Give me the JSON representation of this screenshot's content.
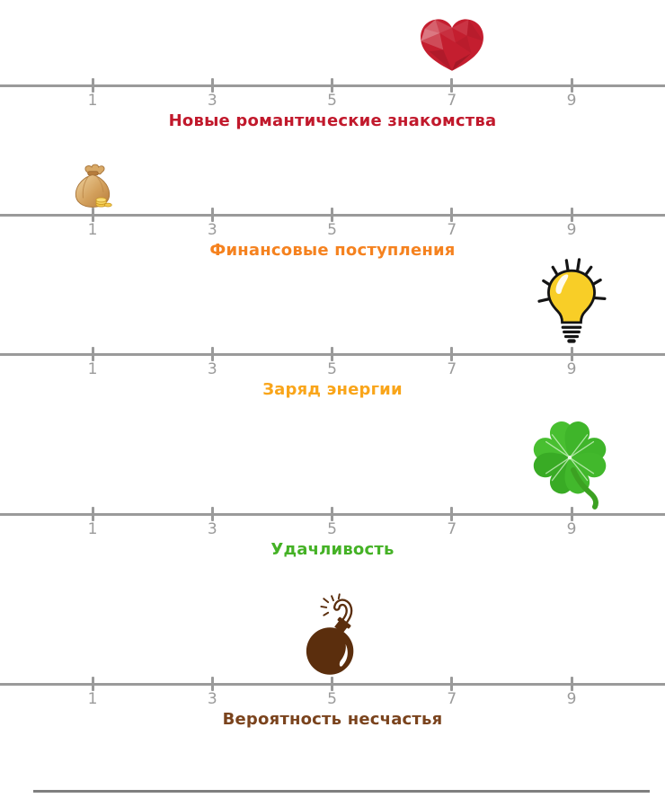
{
  "axis": {
    "tick_labels": [
      "1",
      "3",
      "5",
      "7",
      "9"
    ],
    "min": 1,
    "max": 9
  },
  "scales": [
    {
      "label": "Новые романтические знакомства",
      "color": "#c1192c",
      "icon": "heart",
      "value": 7
    },
    {
      "label": "Финансовые поступления",
      "color": "#f5821f",
      "icon": "money-bag",
      "value": 1
    },
    {
      "label": "Заряд энергии",
      "color": "#f9a51a",
      "icon": "light-bulb",
      "value": 9
    },
    {
      "label": "Удачливость",
      "color": "#45b226",
      "icon": "clover",
      "value": 9
    },
    {
      "label": "Вероятность несчастья",
      "color": "#7a431d",
      "icon": "bomb",
      "value": 5
    }
  ],
  "colors": {
    "scale_line": "#9a9a9a",
    "tick_number": "#9b9b9b",
    "bottom_rule": "#7f7f7f",
    "heart_red": "#c41e2f",
    "bulb_yellow": "#f8ce27",
    "clover_green": "#41b52b",
    "bomb_brown": "#5b2e0d",
    "bag_tan": "#d3a05c"
  },
  "chart_data": {
    "type": "scatter",
    "title": "",
    "categories": [
      "Новые романтические знакомства",
      "Финансовые поступления",
      "Заряд энергии",
      "Удачливость",
      "Вероятность несчастья"
    ],
    "values": [
      7,
      1,
      9,
      9,
      5
    ],
    "xlim": [
      1,
      9
    ],
    "x_tick_labels": [
      "1",
      "3",
      "5",
      "7",
      "9"
    ],
    "layout": "five independent horizontal 1-9 rating lines, marker icon above each line at its value, category caption centered under each line",
    "markers": [
      "heart",
      "money-bag",
      "light-bulb",
      "clover",
      "bomb"
    ],
    "grid": false,
    "legend": false
  }
}
